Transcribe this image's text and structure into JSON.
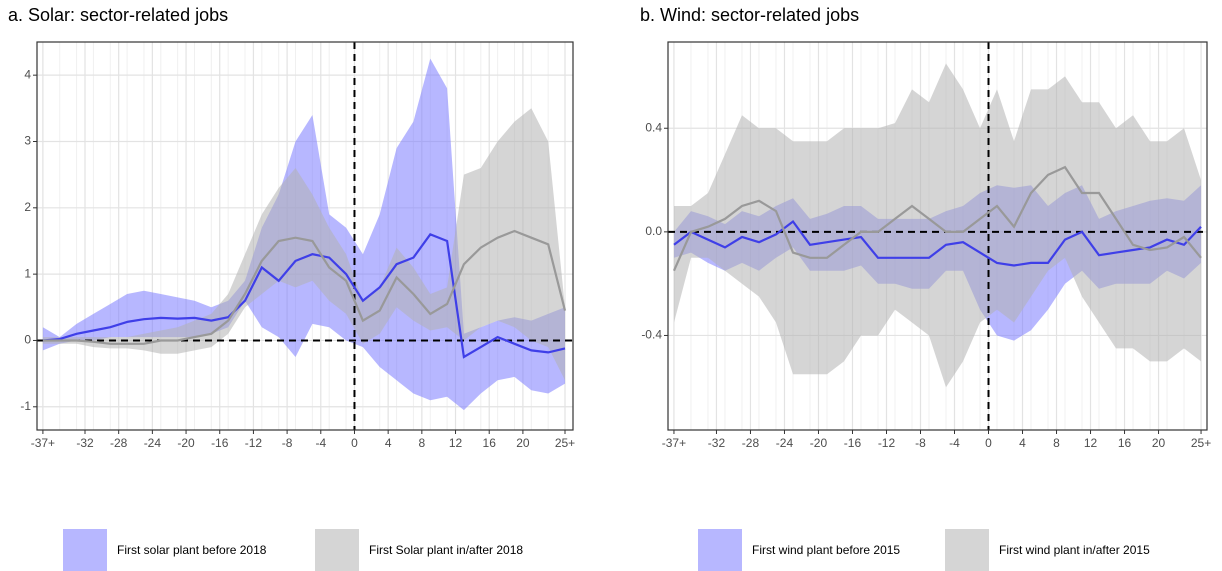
{
  "chart_data": [
    {
      "type": "band-line",
      "title": "a. Solar: sector-related jobs",
      "x": [
        -37,
        -35,
        -33,
        -31,
        -29,
        -27,
        -25,
        -23,
        -21,
        -19,
        -17,
        -15,
        -13,
        -11,
        -9,
        -7,
        -5,
        -3,
        -1,
        1,
        3,
        5,
        7,
        9,
        11,
        13,
        15,
        17,
        19,
        21,
        23,
        25
      ],
      "xlim": [
        -37.7,
        25.95
      ],
      "ylim": [
        -1.35,
        4.5
      ],
      "xticks": [
        {
          "value": -37,
          "label": "-37+"
        },
        -32,
        -28,
        -24,
        -20,
        -16,
        -12,
        -8,
        -4,
        0,
        4,
        8,
        12,
        16,
        20,
        {
          "value": 25,
          "label": "25+"
        }
      ],
      "yticks": [
        -1,
        0,
        1,
        2,
        3,
        4
      ],
      "grid": true,
      "legend": "bottom",
      "reference_lines": {
        "x": 0,
        "y": 0
      },
      "series": [
        {
          "name": "First solar plant before 2018",
          "color": "#3f3fe8",
          "fill": "#7b7bff",
          "values": [
            0,
            0.02,
            0.1,
            0.15,
            0.2,
            0.28,
            0.32,
            0.34,
            0.33,
            0.34,
            0.3,
            0.35,
            0.6,
            1.1,
            0.9,
            1.2,
            1.3,
            1.25,
            1.0,
            0.6,
            0.8,
            1.15,
            1.25,
            1.6,
            1.5,
            -0.25,
            -0.1,
            0.05,
            -0.05,
            -0.15,
            -0.18,
            -0.12
          ],
          "lower": [
            -0.15,
            -0.05,
            0,
            0,
            0.05,
            0.05,
            0.05,
            0.05,
            0.05,
            0.05,
            0.1,
            0.2,
            0.6,
            0.2,
            0.05,
            -0.25,
            0.25,
            0.2,
            0,
            -0.1,
            -0.4,
            -0.6,
            -0.8,
            -0.9,
            -0.85,
            -1.05,
            -0.8,
            -0.6,
            -0.55,
            -0.75,
            -0.8,
            -0.65
          ],
          "upper": [
            0.2,
            0.05,
            0.25,
            0.4,
            0.55,
            0.7,
            0.75,
            0.7,
            0.65,
            0.6,
            0.5,
            0.6,
            0.9,
            1.7,
            2.2,
            3.0,
            3.4,
            1.9,
            1.7,
            1.3,
            1.9,
            2.9,
            3.3,
            4.25,
            3.8,
            0.1,
            0.2,
            0.3,
            0.35,
            0.3,
            0.4,
            0.5
          ]
        },
        {
          "name": "First Solar plant in/after 2018",
          "color": "#999999",
          "fill": "#b3b3b3",
          "values": [
            0,
            0,
            0,
            -0.02,
            -0.05,
            -0.05,
            -0.05,
            0,
            0,
            0.05,
            0.1,
            0.3,
            0.7,
            1.2,
            1.5,
            1.55,
            1.5,
            1.1,
            0.9,
            0.3,
            0.45,
            0.95,
            0.7,
            0.4,
            0.55,
            1.15,
            1.4,
            1.55,
            1.65,
            1.55,
            1.45,
            0.45
          ],
          "lower": [
            -0.05,
            -0.05,
            -0.05,
            -0.1,
            -0.12,
            -0.12,
            -0.15,
            -0.2,
            -0.2,
            -0.15,
            -0.1,
            0.1,
            0.5,
            0.7,
            0.9,
            0.8,
            0.9,
            0.6,
            0.4,
            -0.05,
            0.1,
            0.5,
            0.3,
            0.15,
            0.2,
            0,
            0.2,
            0.3,
            0.2,
            0,
            -0.1,
            -0.6
          ],
          "upper": [
            0.05,
            0.05,
            0.05,
            0.05,
            0.05,
            0.05,
            0.1,
            0.15,
            0.2,
            0.3,
            0.4,
            0.7,
            1.3,
            1.9,
            2.3,
            2.6,
            2.2,
            1.7,
            1.3,
            0.6,
            0.8,
            1.4,
            1.1,
            0.7,
            0.8,
            2.5,
            2.6,
            3.0,
            3.3,
            3.5,
            3.0,
            0.5
          ]
        }
      ]
    },
    {
      "type": "band-line",
      "title": "b. Wind: sector-related jobs",
      "x": [
        -37,
        -35,
        -33,
        -31,
        -29,
        -27,
        -25,
        -23,
        -21,
        -19,
        -17,
        -15,
        -13,
        -11,
        -9,
        -7,
        -5,
        -3,
        -1,
        1,
        3,
        5,
        7,
        9,
        11,
        13,
        15,
        17,
        19,
        21,
        23,
        25
      ],
      "xlim": [
        -37.7,
        25.7
      ],
      "ylim": [
        -0.765,
        0.733
      ],
      "xticks": [
        {
          "value": -37,
          "label": "-37+"
        },
        -32,
        -28,
        -24,
        -20,
        -16,
        -12,
        -8,
        -4,
        0,
        4,
        8,
        12,
        16,
        20,
        {
          "value": 25,
          "label": "25+"
        }
      ],
      "yticks": [
        -0.4,
        {
          "value": 0,
          "label": "0.0"
        },
        0.4
      ],
      "grid": true,
      "legend": "bottom",
      "reference_lines": {
        "x": 0,
        "y": 0
      },
      "series": [
        {
          "name": "First wind plant before 2015",
          "color": "#3f3fe8",
          "fill": "#7b7bff",
          "values": [
            -0.05,
            0,
            -0.03,
            -0.06,
            -0.02,
            -0.04,
            -0.01,
            0.04,
            -0.05,
            -0.04,
            -0.03,
            -0.02,
            -0.1,
            -0.1,
            -0.1,
            -0.1,
            -0.05,
            -0.04,
            -0.08,
            -0.12,
            -0.13,
            -0.12,
            -0.12,
            -0.03,
            0,
            -0.09,
            -0.08,
            -0.07,
            -0.06,
            -0.03,
            -0.05,
            0.02
          ],
          "lower": [
            -0.1,
            -0.08,
            -0.12,
            -0.15,
            -0.12,
            -0.15,
            -0.1,
            -0.06,
            -0.15,
            -0.15,
            -0.15,
            -0.13,
            -0.2,
            -0.2,
            -0.22,
            -0.22,
            -0.15,
            -0.15,
            -0.3,
            -0.4,
            -0.42,
            -0.38,
            -0.3,
            -0.2,
            -0.15,
            -0.22,
            -0.2,
            -0.2,
            -0.2,
            -0.15,
            -0.18,
            -0.12
          ],
          "upper": [
            0,
            0.08,
            0.06,
            0.03,
            0.08,
            0.06,
            0.1,
            0.13,
            0.05,
            0.07,
            0.1,
            0.1,
            0.05,
            0.05,
            0.05,
            0.05,
            0.08,
            0.1,
            0.15,
            0.18,
            0.17,
            0.18,
            0.1,
            0.15,
            0.18,
            0.05,
            0.08,
            0.1,
            0.12,
            0.13,
            0.12,
            0.18
          ]
        },
        {
          "name": "First wind plant in/after 2015",
          "color": "#999999",
          "fill": "#b3b3b3",
          "values": [
            -0.15,
            0,
            0.02,
            0.05,
            0.1,
            0.12,
            0.08,
            -0.08,
            -0.1,
            -0.1,
            -0.05,
            0,
            0,
            0.05,
            0.1,
            0.05,
            0,
            0,
            0.05,
            0.1,
            0.02,
            0.15,
            0.22,
            0.25,
            0.15,
            0.15,
            0.05,
            -0.05,
            -0.07,
            -0.06,
            -0.02,
            -0.1
          ],
          "lower": [
            -0.35,
            -0.1,
            -0.1,
            -0.15,
            -0.2,
            -0.25,
            -0.35,
            -0.55,
            -0.55,
            -0.55,
            -0.5,
            -0.4,
            -0.4,
            -0.3,
            -0.35,
            -0.4,
            -0.6,
            -0.5,
            -0.35,
            -0.3,
            -0.35,
            -0.25,
            -0.15,
            -0.1,
            -0.25,
            -0.35,
            -0.45,
            -0.45,
            -0.5,
            -0.5,
            -0.45,
            -0.5
          ],
          "upper": [
            0.1,
            0.1,
            0.15,
            0.3,
            0.45,
            0.4,
            0.4,
            0.35,
            0.35,
            0.35,
            0.4,
            0.4,
            0.4,
            0.42,
            0.55,
            0.5,
            0.65,
            0.55,
            0.4,
            0.55,
            0.35,
            0.55,
            0.55,
            0.6,
            0.5,
            0.5,
            0.4,
            0.45,
            0.35,
            0.35,
            0.4,
            0.2
          ]
        }
      ]
    }
  ]
}
